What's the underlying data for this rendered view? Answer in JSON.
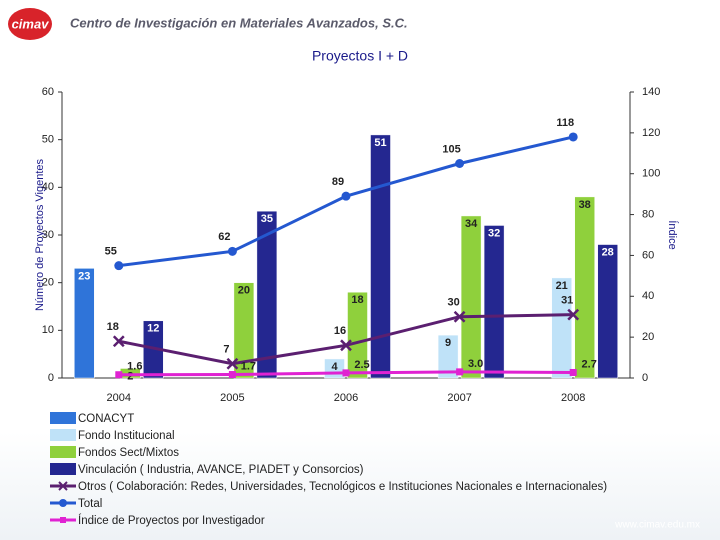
{
  "header": {
    "logo": "cimav",
    "organization": "Centro de Investigación en Materiales Avanzados, S.C."
  },
  "footer": {
    "url": "www.cimav.edu.mx"
  },
  "chart_data": {
    "type": "bar",
    "title": "Proyectos I + D",
    "y_label": "Número de Proyectos Vigentes",
    "y2_label": "Índice",
    "categories": [
      "2004",
      "2005",
      "2006",
      "2007",
      "2008"
    ],
    "ylim": [
      0,
      60
    ],
    "yticks": [
      0,
      10,
      20,
      30,
      40,
      50,
      60
    ],
    "y2lim": [
      0,
      140
    ],
    "y2ticks": [
      0,
      20,
      40,
      60,
      80,
      100,
      120,
      140
    ],
    "series": [
      {
        "name": "CONACYT",
        "kind": "bar",
        "color": "#2f74d9",
        "values": [
          23,
          null,
          null,
          null,
          null
        ]
      },
      {
        "name": "Fondo Institucional",
        "kind": "bar",
        "color": "#bfe2f8",
        "values": [
          null,
          null,
          4,
          9,
          21
        ]
      },
      {
        "name": "Fondos Sect/Mixtos",
        "kind": "bar",
        "color": "#8fd03c",
        "values": [
          2,
          20,
          18,
          34,
          38
        ]
      },
      {
        "name": "Vinculación ( Industria, AVANCE, PIADET y Consorcios)",
        "kind": "bar",
        "color": "#242790",
        "values": [
          12,
          35,
          51,
          32,
          28
        ]
      },
      {
        "name": "Otros ( Colaboración: Redes, Universidades, Tecnológicos e Instituciones Nacionales e Internacionales)",
        "kind": "line",
        "marker": "x",
        "axis": "y2",
        "color": "#5b1f70",
        "values": [
          18,
          7,
          16,
          30,
          31
        ]
      },
      {
        "name": "Total",
        "kind": "line",
        "marker": "circle",
        "axis": "y2",
        "color": "#2458d0",
        "values": [
          55,
          62,
          89,
          105,
          118
        ]
      },
      {
        "name": "Índice de Proyectos por Investigador",
        "kind": "line",
        "marker": "square",
        "axis": "y2",
        "color": "#e022d2",
        "values": [
          1.6,
          1.7,
          2.5,
          3.0,
          2.7
        ],
        "value_labels": [
          "1.6",
          "1.7",
          "2.5",
          "3.0",
          "2.7"
        ]
      }
    ]
  }
}
